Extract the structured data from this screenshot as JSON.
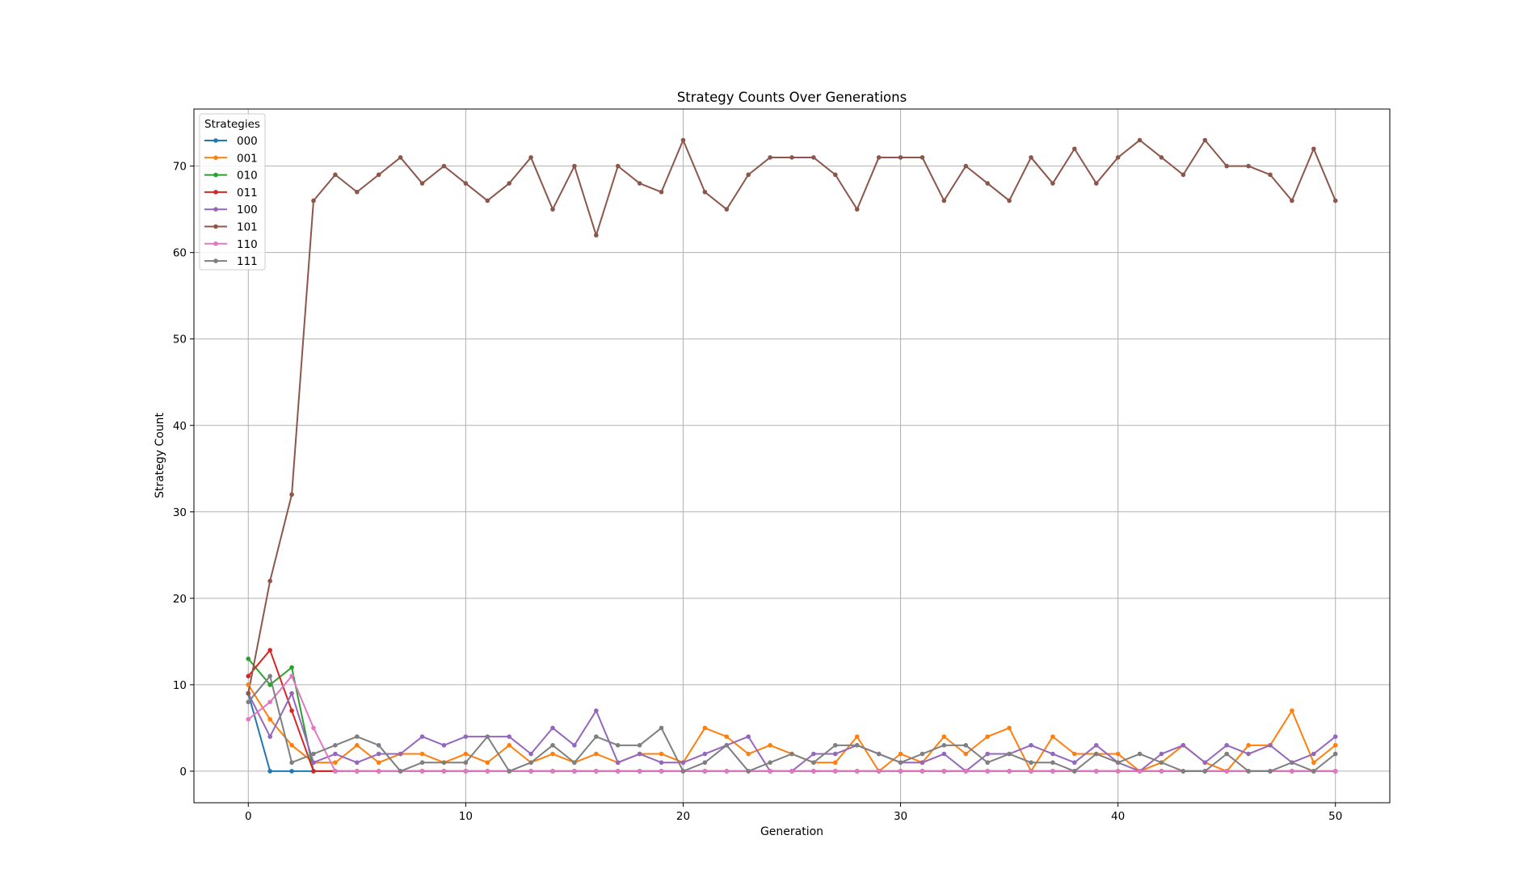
{
  "chart_data": {
    "type": "line",
    "title": "Strategy Counts Over Generations",
    "xlabel": "Generation",
    "ylabel": "Strategy Count",
    "xlim": [
      -2.5,
      52.5
    ],
    "ylim": [
      -3.65,
      76.6
    ],
    "xticks": [
      0,
      10,
      20,
      30,
      40,
      50
    ],
    "yticks": [
      0,
      10,
      20,
      30,
      40,
      50,
      60,
      70
    ],
    "grid": true,
    "legend": {
      "title": "Strategies",
      "placement": "top-left"
    },
    "x": [
      0,
      1,
      2,
      3,
      4,
      5,
      6,
      7,
      8,
      9,
      10,
      11,
      12,
      13,
      14,
      15,
      16,
      17,
      18,
      19,
      20,
      21,
      22,
      23,
      24,
      25,
      26,
      27,
      28,
      29,
      30,
      31,
      32,
      33,
      34,
      35,
      36,
      37,
      38,
      39,
      40,
      41,
      42,
      43,
      44,
      45,
      46,
      47,
      48,
      49,
      50
    ],
    "series": [
      {
        "name": "000",
        "color": "#1f77b4",
        "values": [
          9,
          0,
          0,
          0,
          0,
          0,
          0,
          0,
          0,
          0,
          0,
          0,
          0,
          0,
          0,
          0,
          0,
          0,
          0,
          0,
          0,
          0,
          0,
          0,
          0,
          0,
          0,
          0,
          0,
          0,
          0,
          0,
          0,
          0,
          0,
          0,
          0,
          0,
          0,
          0,
          0,
          0,
          0,
          0,
          0,
          0,
          0,
          0,
          0,
          0,
          0
        ]
      },
      {
        "name": "001",
        "color": "#ff7f0e",
        "values": [
          10,
          6,
          3,
          1,
          1,
          3,
          1,
          2,
          2,
          1,
          2,
          1,
          3,
          1,
          2,
          1,
          2,
          1,
          2,
          2,
          1,
          5,
          4,
          2,
          3,
          2,
          1,
          1,
          4,
          0,
          2,
          1,
          4,
          2,
          4,
          5,
          0,
          4,
          2,
          2,
          2,
          0,
          1,
          3,
          1,
          0,
          3,
          3,
          7,
          1,
          3
        ]
      },
      {
        "name": "010",
        "color": "#2ca02c",
        "values": [
          13,
          10,
          12,
          0,
          0,
          0,
          0,
          0,
          0,
          0,
          0,
          0,
          0,
          0,
          0,
          0,
          0,
          0,
          0,
          0,
          0,
          0,
          0,
          0,
          0,
          0,
          0,
          0,
          0,
          0,
          0,
          0,
          0,
          0,
          0,
          0,
          0,
          0,
          0,
          0,
          0,
          0,
          0,
          0,
          0,
          0,
          0,
          0,
          0,
          0,
          0
        ]
      },
      {
        "name": "011",
        "color": "#d62728",
        "values": [
          11,
          14,
          7,
          0,
          0,
          0,
          0,
          0,
          0,
          0,
          0,
          0,
          0,
          0,
          0,
          0,
          0,
          0,
          0,
          0,
          0,
          0,
          0,
          0,
          0,
          0,
          0,
          0,
          0,
          0,
          0,
          0,
          0,
          0,
          0,
          0,
          0,
          0,
          0,
          0,
          0,
          0,
          0,
          0,
          0,
          0,
          0,
          0,
          0,
          0,
          0
        ]
      },
      {
        "name": "100",
        "color": "#9467bd",
        "values": [
          9,
          4,
          9,
          1,
          2,
          1,
          2,
          2,
          4,
          3,
          4,
          4,
          4,
          2,
          5,
          3,
          7,
          1,
          2,
          1,
          1,
          2,
          3,
          4,
          0,
          0,
          2,
          2,
          3,
          2,
          1,
          1,
          2,
          0,
          2,
          2,
          3,
          2,
          1,
          3,
          1,
          0,
          2,
          3,
          1,
          3,
          2,
          3,
          1,
          2,
          4
        ]
      },
      {
        "name": "101",
        "color": "#8c564b",
        "values": [
          9,
          22,
          32,
          66,
          69,
          67,
          69,
          71,
          68,
          70,
          68,
          66,
          68,
          71,
          65,
          70,
          62,
          70,
          68,
          67,
          73,
          67,
          65,
          69,
          71,
          71,
          71,
          69,
          65,
          71,
          71,
          71,
          66,
          70,
          68,
          66,
          71,
          68,
          72,
          68,
          71,
          73,
          71,
          69,
          73,
          70,
          70,
          69,
          66,
          72,
          66
        ]
      },
      {
        "name": "110",
        "color": "#e377c2",
        "values": [
          6,
          8,
          11,
          5,
          0,
          0,
          0,
          0,
          0,
          0,
          0,
          0,
          0,
          0,
          0,
          0,
          0,
          0,
          0,
          0,
          0,
          0,
          0,
          0,
          0,
          0,
          0,
          0,
          0,
          0,
          0,
          0,
          0,
          0,
          0,
          0,
          0,
          0,
          0,
          0,
          0,
          0,
          0,
          0,
          0,
          0,
          0,
          0,
          0,
          0,
          0
        ]
      },
      {
        "name": "111",
        "color": "#7f7f7f",
        "values": [
          8,
          11,
          1,
          2,
          3,
          4,
          3,
          0,
          1,
          1,
          1,
          4,
          0,
          1,
          3,
          1,
          4,
          3,
          3,
          5,
          0,
          1,
          3,
          0,
          1,
          2,
          1,
          3,
          3,
          2,
          1,
          2,
          3,
          3,
          1,
          2,
          1,
          1,
          0,
          2,
          1,
          2,
          1,
          0,
          0,
          2,
          0,
          0,
          1,
          0,
          2
        ]
      }
    ]
  }
}
